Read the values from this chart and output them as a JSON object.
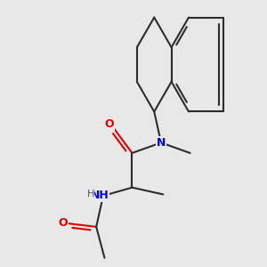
{
  "bg_color": "#e8e8e8",
  "bond_color": "#2d2d2d",
  "N_color": "#0000ee",
  "O_color": "#dd0000",
  "H_color": "#555555",
  "line_width": 1.5,
  "fig_size": [
    3.0,
    3.0
  ],
  "dpi": 100,
  "xlim": [
    -0.3,
    3.0
  ],
  "ylim": [
    -1.0,
    2.8
  ]
}
